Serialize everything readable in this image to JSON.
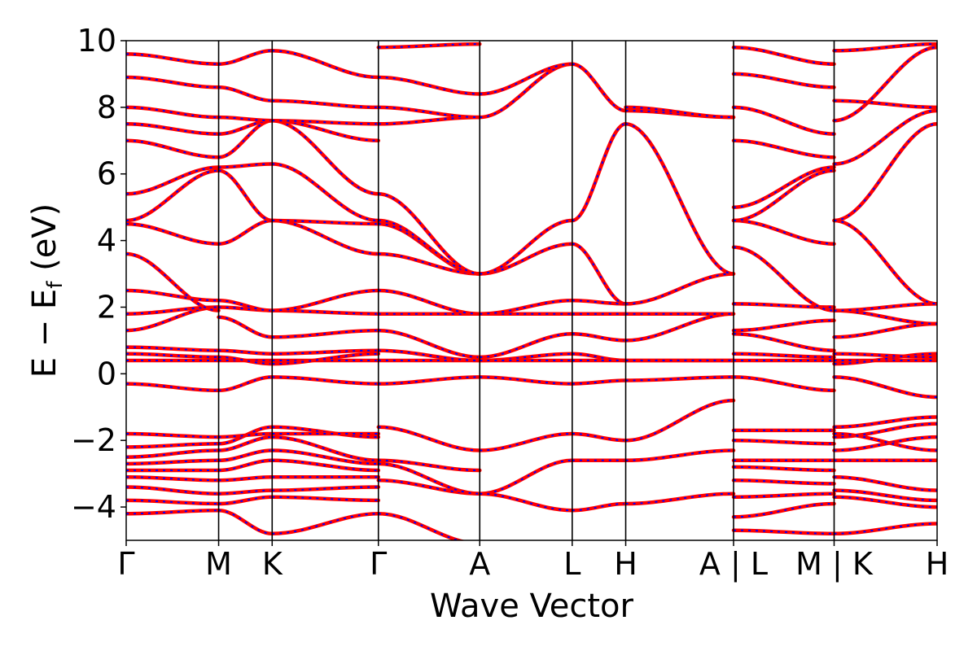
{
  "chart_data": {
    "type": "line",
    "title": "",
    "xlabel": "Wave Vector",
    "ylabel_main": "E − E",
    "ylabel_sub": "f",
    "ylabel_unit": " (eV)",
    "ylim": [
      -5,
      10
    ],
    "yticks": [
      -4,
      -2,
      0,
      2,
      4,
      6,
      8,
      10
    ],
    "ytick_labels": [
      "−4",
      "−2",
      "0",
      "2",
      "4",
      "6",
      "8",
      "10"
    ],
    "grid": false,
    "legend": "none",
    "series_colors": {
      "primary": "#ff0000",
      "overlay_dashed": "#0000ff"
    },
    "kpath_ticks": [
      {
        "label": "Γ",
        "x": 0.0
      },
      {
        "label": "M",
        "x": 0.114
      },
      {
        "label": "K",
        "x": 0.18
      },
      {
        "label": "Γ",
        "x": 0.311
      },
      {
        "label": "A",
        "x": 0.436
      },
      {
        "label": "L",
        "x": 0.55
      },
      {
        "label": "H",
        "x": 0.616
      },
      {
        "label": "A | L",
        "x": 0.749
      },
      {
        "label": "M | K",
        "x": 0.873
      },
      {
        "label": "H",
        "x": 1.0
      }
    ],
    "vertical_line_positions": [
      0.114,
      0.18,
      0.311,
      0.436,
      0.55,
      0.616,
      0.749,
      0.873
    ],
    "segments": [
      {
        "from": "Γ",
        "to": "M",
        "x0": 0.0,
        "x1": 0.114,
        "bands": [
          [
            -4.2,
            -4.1
          ],
          [
            -3.8,
            -3.9
          ],
          [
            -3.4,
            -3.6
          ],
          [
            -3.1,
            -3.2
          ],
          [
            -2.9,
            -2.9
          ],
          [
            -2.7,
            -2.6
          ],
          [
            -2.5,
            -2.3
          ],
          [
            -2.2,
            -2.1
          ],
          [
            -1.8,
            -1.9
          ],
          [
            -0.3,
            -0.5
          ],
          [
            0.4,
            0.4
          ],
          [
            0.6,
            0.5
          ],
          [
            0.8,
            0.7
          ],
          [
            1.3,
            2.0
          ],
          [
            1.8,
            2.0
          ],
          [
            2.5,
            2.2
          ],
          [
            3.6,
            1.9
          ],
          [
            4.5,
            3.9
          ],
          [
            4.6,
            6.1
          ],
          [
            5.4,
            6.2
          ],
          [
            7.0,
            6.5
          ],
          [
            7.5,
            7.2
          ],
          [
            8.0,
            7.7
          ],
          [
            8.9,
            8.6
          ],
          [
            9.6,
            9.3
          ]
        ]
      },
      {
        "from": "M",
        "to": "K",
        "x0": 0.114,
        "x1": 0.18,
        "bands": [
          [
            -4.1,
            -4.8
          ],
          [
            -3.9,
            -3.7
          ],
          [
            -3.6,
            -3.5
          ],
          [
            -3.2,
            -3.1
          ],
          [
            -2.9,
            -2.6
          ],
          [
            -2.6,
            -2.3
          ],
          [
            -2.3,
            -1.9
          ],
          [
            -2.1,
            -1.6
          ],
          [
            -1.9,
            -1.8
          ],
          [
            -0.5,
            -0.1
          ],
          [
            0.4,
            0.4
          ],
          [
            0.5,
            0.3
          ],
          [
            0.7,
            0.6
          ],
          [
            1.7,
            1.1
          ],
          [
            2.0,
            1.9
          ],
          [
            2.2,
            1.9
          ],
          [
            3.9,
            4.6
          ],
          [
            6.1,
            4.6
          ],
          [
            6.2,
            6.3
          ],
          [
            6.5,
            7.6
          ],
          [
            7.2,
            7.6
          ],
          [
            7.7,
            7.6
          ],
          [
            8.6,
            8.2
          ],
          [
            9.3,
            9.7
          ]
        ]
      },
      {
        "from": "K",
        "to": "Γ",
        "x0": 0.18,
        "x1": 0.311,
        "bands": [
          [
            -4.8,
            -4.2
          ],
          [
            -3.7,
            -3.8
          ],
          [
            -3.5,
            -3.4
          ],
          [
            -3.1,
            -3.1
          ],
          [
            -2.6,
            -2.9
          ],
          [
            -2.3,
            -2.7
          ],
          [
            -1.9,
            -2.6
          ],
          [
            -1.6,
            -1.9
          ],
          [
            -1.8,
            -1.8
          ],
          [
            -0.1,
            -0.3
          ],
          [
            0.4,
            0.4
          ],
          [
            0.3,
            0.6
          ],
          [
            0.6,
            0.7
          ],
          [
            1.1,
            1.3
          ],
          [
            1.9,
            1.8
          ],
          [
            1.9,
            2.5
          ],
          [
            4.6,
            3.6
          ],
          [
            4.6,
            4.5
          ],
          [
            6.3,
            4.6
          ],
          [
            7.6,
            5.4
          ],
          [
            7.6,
            7.0
          ],
          [
            7.6,
            7.5
          ],
          [
            8.2,
            8.0
          ],
          [
            9.7,
            8.9
          ]
        ]
      },
      {
        "from": "Γ",
        "to": "A",
        "x0": 0.311,
        "x1": 0.436,
        "bands": [
          [
            -4.2,
            -5.1
          ],
          [
            -3.2,
            -3.6
          ],
          [
            -2.7,
            -3.6
          ],
          [
            -2.6,
            -2.9
          ],
          [
            -1.6,
            -2.3
          ],
          [
            -0.3,
            -0.1
          ],
          [
            0.4,
            0.4
          ],
          [
            0.7,
            0.4
          ],
          [
            1.3,
            0.5
          ],
          [
            1.8,
            1.8
          ],
          [
            2.5,
            1.8
          ],
          [
            3.6,
            3.0
          ],
          [
            4.5,
            3.0
          ],
          [
            4.6,
            3.0
          ],
          [
            5.4,
            3.0
          ],
          [
            7.5,
            7.7
          ],
          [
            8.0,
            7.7
          ],
          [
            8.9,
            8.4
          ],
          [
            9.8,
            9.9
          ]
        ]
      },
      {
        "from": "A",
        "to": "L",
        "x0": 0.436,
        "x1": 0.55,
        "bands": [
          [
            -3.6,
            -2.6
          ],
          [
            -3.6,
            -4.1
          ],
          [
            -2.3,
            -1.8
          ],
          [
            -0.1,
            -0.3
          ],
          [
            0.4,
            0.6
          ],
          [
            0.4,
            0.4
          ],
          [
            0.5,
            1.2
          ],
          [
            1.8,
            1.8
          ],
          [
            1.8,
            2.2
          ],
          [
            3.0,
            3.9
          ],
          [
            3.0,
            4.6
          ],
          [
            7.7,
            9.3
          ],
          [
            8.4,
            9.3
          ]
        ]
      },
      {
        "from": "L",
        "to": "H",
        "x0": 0.55,
        "x1": 0.616,
        "bands": [
          [
            -4.1,
            -3.9
          ],
          [
            -2.6,
            -2.6
          ],
          [
            -1.8,
            -2.0
          ],
          [
            -0.3,
            -0.2
          ],
          [
            0.6,
            0.4
          ],
          [
            0.4,
            0.4
          ],
          [
            1.2,
            1.0
          ],
          [
            1.8,
            1.8
          ],
          [
            2.2,
            2.1
          ],
          [
            3.9,
            2.1
          ],
          [
            4.6,
            7.5
          ],
          [
            9.3,
            7.9
          ]
        ]
      },
      {
        "from": "H",
        "to": "A",
        "x0": 0.616,
        "x1": 0.749,
        "bands": [
          [
            -3.9,
            -3.6
          ],
          [
            -2.6,
            -2.3
          ],
          [
            -2.0,
            -0.8
          ],
          [
            -0.2,
            -0.1
          ],
          [
            0.4,
            0.4
          ],
          [
            0.4,
            0.4
          ],
          [
            1.0,
            1.8
          ],
          [
            1.8,
            1.8
          ],
          [
            2.1,
            3.0
          ],
          [
            7.5,
            3.0
          ],
          [
            7.9,
            7.7
          ],
          [
            8.0,
            7.7
          ]
        ]
      },
      {
        "from": "L",
        "to": "M",
        "x0": 0.749,
        "x1": 0.873,
        "bands": [
          [
            -4.7,
            -4.8
          ],
          [
            -4.3,
            -3.9
          ],
          [
            -3.7,
            -3.6
          ],
          [
            -3.2,
            -3.3
          ],
          [
            -2.8,
            -2.9
          ],
          [
            -2.6,
            -2.6
          ],
          [
            -2.0,
            -2.1
          ],
          [
            -1.7,
            -1.7
          ],
          [
            -0.1,
            -0.5
          ],
          [
            0.4,
            0.4
          ],
          [
            0.6,
            0.5
          ],
          [
            1.2,
            0.7
          ],
          [
            1.3,
            1.6
          ],
          [
            2.1,
            2.0
          ],
          [
            3.8,
            1.9
          ],
          [
            4.6,
            3.9
          ],
          [
            4.6,
            6.1
          ],
          [
            5.0,
            6.2
          ],
          [
            7.0,
            6.5
          ],
          [
            8.0,
            7.2
          ],
          [
            9.0,
            8.6
          ],
          [
            9.8,
            9.3
          ]
        ]
      },
      {
        "from": "K",
        "to": "H",
        "x0": 0.873,
        "x1": 1.0,
        "bands": [
          [
            -4.8,
            -4.5
          ],
          [
            -3.7,
            -4.0
          ],
          [
            -3.5,
            -3.8
          ],
          [
            -3.1,
            -3.5
          ],
          [
            -2.6,
            -2.6
          ],
          [
            -2.3,
            -1.9
          ],
          [
            -1.9,
            -1.5
          ],
          [
            -1.6,
            -1.3
          ],
          [
            -1.8,
            -2.3
          ],
          [
            -0.1,
            -0.7
          ],
          [
            0.4,
            0.4
          ],
          [
            0.3,
            0.6
          ],
          [
            0.6,
            0.5
          ],
          [
            1.1,
            1.5
          ],
          [
            1.9,
            1.5
          ],
          [
            1.9,
            2.1
          ],
          [
            4.6,
            2.1
          ],
          [
            4.6,
            7.5
          ],
          [
            6.3,
            7.9
          ],
          [
            7.6,
            9.8
          ],
          [
            8.2,
            8.0
          ],
          [
            9.7,
            9.9
          ]
        ]
      }
    ]
  }
}
